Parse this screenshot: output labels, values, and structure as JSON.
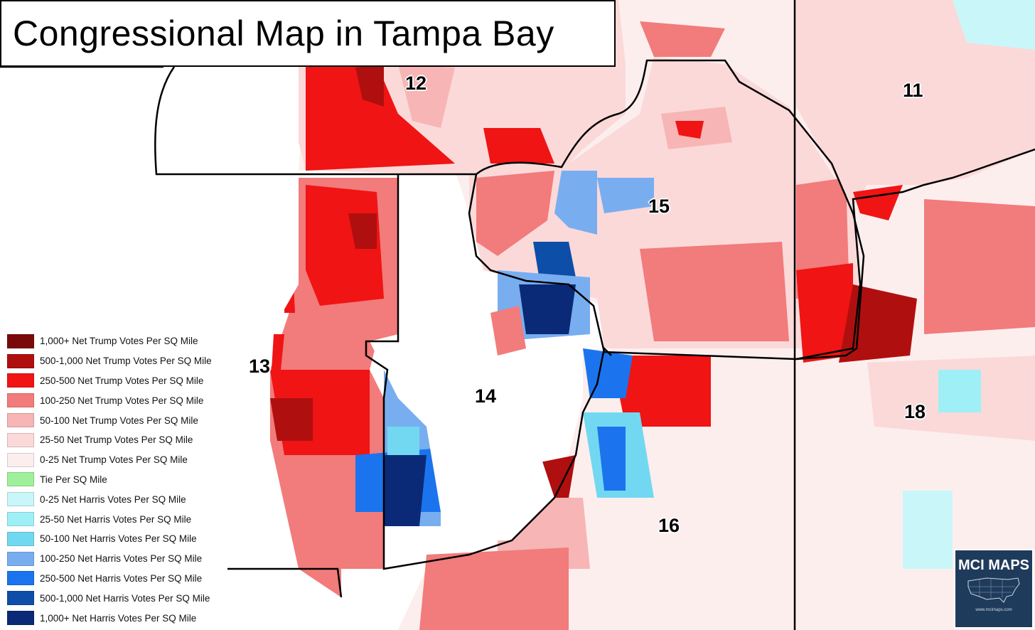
{
  "title": "Congressional Map in Tampa Bay",
  "districts": [
    {
      "label": "11"
    },
    {
      "label": "12"
    },
    {
      "label": "13"
    },
    {
      "label": "14"
    },
    {
      "label": "15"
    },
    {
      "label": "16"
    },
    {
      "label": "18"
    }
  ],
  "legend": [
    {
      "label": "1,000+ Net Trump Votes Per SQ Mile",
      "color": "#7a0a0a"
    },
    {
      "label": "500-1,000 Net Trump Votes Per SQ Mile",
      "color": "#b00f0f"
    },
    {
      "label": "250-500 Net Trump Votes Per SQ Mile",
      "color": "#f01414"
    },
    {
      "label": "100-250 Net Trump Votes Per SQ Mile",
      "color": "#f27b7b"
    },
    {
      "label": "50-100 Net Trump Votes Per SQ Mile",
      "color": "#f7b5b5"
    },
    {
      "label": "25-50 Net Trump Votes Per SQ Mile",
      "color": "#fbd9d9"
    },
    {
      "label": "0-25 Net Trump Votes Per SQ Mile",
      "color": "#fdeeee"
    },
    {
      "label": "Tie Per SQ Mile",
      "color": "#9ff09a"
    },
    {
      "label": "0-25 Net Harris Votes Per SQ Mile",
      "color": "#c9f7f9"
    },
    {
      "label": "25-50 Net Harris Votes Per SQ Mile",
      "color": "#9ff0f6"
    },
    {
      "label": "50-100 Net Harris Votes Per SQ Mile",
      "color": "#72d8f2"
    },
    {
      "label": "100-250 Net Harris Votes Per SQ Mile",
      "color": "#78aef0"
    },
    {
      "label": "250-500 Net Harris Votes Per SQ Mile",
      "color": "#1b74ee"
    },
    {
      "label": "500-1,000 Net Harris Votes Per SQ Mile",
      "color": "#0d4ea8"
    },
    {
      "label": "1,000+ Net Harris Votes Per SQ Mile",
      "color": "#0a2a78"
    }
  ],
  "logo": {
    "text": "MCI MAPS",
    "url": "www.mcimaps.com",
    "color": "#1f3b5c"
  }
}
